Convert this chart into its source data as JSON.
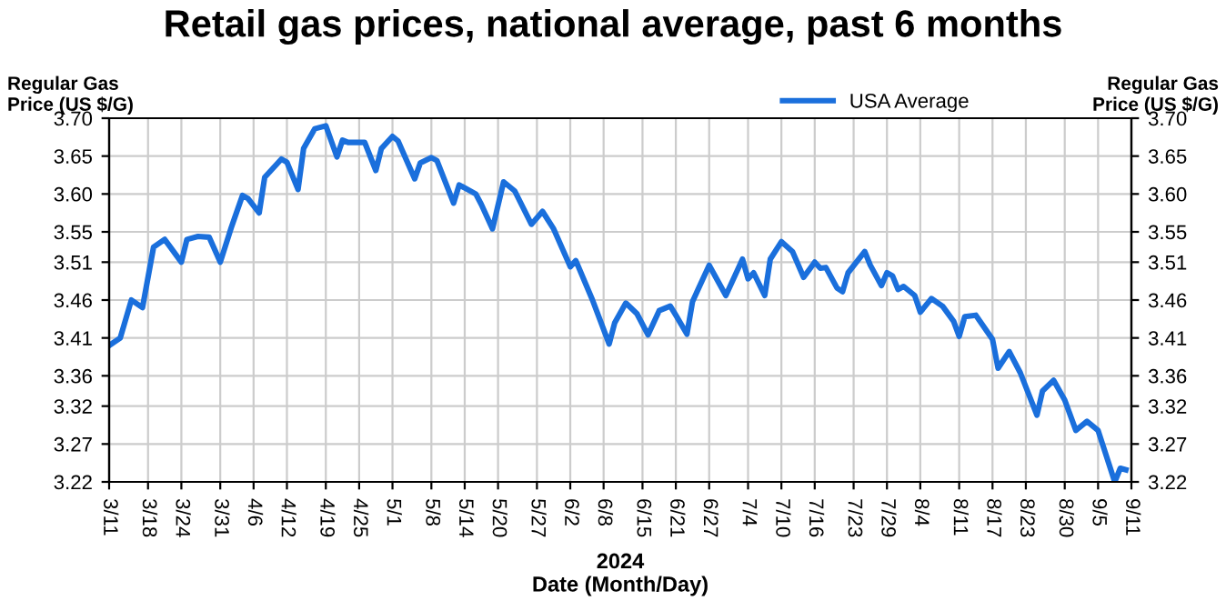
{
  "chart_data": {
    "type": "line",
    "title": "Retail gas prices, national average, past 6 months",
    "xlabel": "2024\nDate (Month/Day)",
    "ylabel": "Regular Gas\nPrice (US $/G)",
    "y2label": "Regular Gas\nPrice (US $/G)",
    "x": [
      "2024-03-11",
      "2024-03-13",
      "2024-03-15",
      "2024-03-17",
      "2024-03-19",
      "2024-03-21",
      "2024-03-22",
      "2024-03-24",
      "2024-03-25",
      "2024-03-27",
      "2024-03-29",
      "2024-03-31",
      "2024-04-02",
      "2024-04-04",
      "2024-04-05",
      "2024-04-07",
      "2024-04-08",
      "2024-04-11",
      "2024-04-12",
      "2024-04-14",
      "2024-04-15",
      "2024-04-17",
      "2024-04-19",
      "2024-04-21",
      "2024-04-22",
      "2024-04-23",
      "2024-04-26",
      "2024-04-28",
      "2024-04-29",
      "2024-05-01",
      "2024-05-02",
      "2024-05-05",
      "2024-05-06",
      "2024-05-08",
      "2024-05-09",
      "2024-05-12",
      "2024-05-13",
      "2024-05-16",
      "2024-05-17",
      "2024-05-19",
      "2024-05-21",
      "2024-05-23",
      "2024-05-26",
      "2024-05-28",
      "2024-05-30",
      "2024-06-02",
      "2024-06-03",
      "2024-06-06",
      "2024-06-09",
      "2024-06-10",
      "2024-06-12",
      "2024-06-14",
      "2024-06-16",
      "2024-06-18",
      "2024-06-20",
      "2024-06-21",
      "2024-06-23",
      "2024-06-24",
      "2024-06-27",
      "2024-06-30",
      "2024-07-03",
      "2024-07-04",
      "2024-07-05",
      "2024-07-07",
      "2024-07-08",
      "2024-07-10",
      "2024-07-12",
      "2024-07-14",
      "2024-07-16",
      "2024-07-17",
      "2024-07-18",
      "2024-07-20",
      "2024-07-21",
      "2024-07-22",
      "2024-07-25",
      "2024-07-26",
      "2024-07-28",
      "2024-07-29",
      "2024-07-30",
      "2024-07-31",
      "2024-08-01",
      "2024-08-03",
      "2024-08-04",
      "2024-08-06",
      "2024-08-08",
      "2024-08-10",
      "2024-08-11",
      "2024-08-12",
      "2024-08-14",
      "2024-08-17",
      "2024-08-18",
      "2024-08-20",
      "2024-08-22",
      "2024-08-25",
      "2024-08-26",
      "2024-08-28",
      "2024-08-30",
      "2024-09-01",
      "2024-09-03",
      "2024-09-05",
      "2024-09-08",
      "2024-09-09",
      "2024-09-10"
    ],
    "series": [
      {
        "name": "USA Average",
        "color": "#1a6fdc",
        "values": [
          3.4,
          3.41,
          3.46,
          3.45,
          3.53,
          3.54,
          3.53,
          3.51,
          3.54,
          3.544,
          3.543,
          3.51,
          3.556,
          3.598,
          3.594,
          3.575,
          3.622,
          3.646,
          3.642,
          3.606,
          3.66,
          3.686,
          3.69,
          3.649,
          3.671,
          3.668,
          3.668,
          3.631,
          3.66,
          3.676,
          3.67,
          3.62,
          3.641,
          3.648,
          3.644,
          3.588,
          3.612,
          3.6,
          3.586,
          3.554,
          3.616,
          3.604,
          3.56,
          3.577,
          3.554,
          3.504,
          3.512,
          3.46,
          3.402,
          3.43,
          3.456,
          3.442,
          3.414,
          3.446,
          3.452,
          3.44,
          3.415,
          3.458,
          3.506,
          3.466,
          3.514,
          3.488,
          3.496,
          3.466,
          3.514,
          3.537,
          3.524,
          3.49,
          3.51,
          3.502,
          3.503,
          3.476,
          3.471,
          3.496,
          3.524,
          3.506,
          3.479,
          3.496,
          3.492,
          3.474,
          3.478,
          3.466,
          3.444,
          3.462,
          3.452,
          3.432,
          3.412,
          3.438,
          3.44,
          3.408,
          3.37,
          3.392,
          3.364,
          3.308,
          3.34,
          3.354,
          3.328,
          3.288,
          3.3,
          3.288,
          3.22,
          3.238,
          3.236
        ]
      }
    ],
    "xlim": [
      "2024-03-11",
      "2024-09-11"
    ],
    "xticks": [
      {
        "value": "2024-03-11",
        "label": "3/11"
      },
      {
        "value": "2024-03-18",
        "label": "3/18"
      },
      {
        "value": "2024-03-24",
        "label": "3/24"
      },
      {
        "value": "2024-03-31",
        "label": "3/31"
      },
      {
        "value": "2024-04-06",
        "label": "4/6"
      },
      {
        "value": "2024-04-12",
        "label": "4/12"
      },
      {
        "value": "2024-04-19",
        "label": "4/19"
      },
      {
        "value": "2024-04-25",
        "label": "4/25"
      },
      {
        "value": "2024-05-01",
        "label": "5/1"
      },
      {
        "value": "2024-05-08",
        "label": "5/8"
      },
      {
        "value": "2024-05-14",
        "label": "5/14"
      },
      {
        "value": "2024-05-20",
        "label": "5/20"
      },
      {
        "value": "2024-05-27",
        "label": "5/27"
      },
      {
        "value": "2024-06-02",
        "label": "6/2"
      },
      {
        "value": "2024-06-08",
        "label": "6/8"
      },
      {
        "value": "2024-06-15",
        "label": "6/15"
      },
      {
        "value": "2024-06-21",
        "label": "6/21"
      },
      {
        "value": "2024-06-27",
        "label": "6/27"
      },
      {
        "value": "2024-07-04",
        "label": "7/4"
      },
      {
        "value": "2024-07-10",
        "label": "7/10"
      },
      {
        "value": "2024-07-16",
        "label": "7/16"
      },
      {
        "value": "2024-07-23",
        "label": "7/23"
      },
      {
        "value": "2024-07-29",
        "label": "7/29"
      },
      {
        "value": "2024-08-04",
        "label": "8/4"
      },
      {
        "value": "2024-08-11",
        "label": "8/11"
      },
      {
        "value": "2024-08-17",
        "label": "8/17"
      },
      {
        "value": "2024-08-23",
        "label": "8/23"
      },
      {
        "value": "2024-08-30",
        "label": "8/30"
      },
      {
        "value": "2024-09-05",
        "label": "9/5"
      },
      {
        "value": "2024-09-11",
        "label": "9/11"
      }
    ],
    "ylim": [
      3.22,
      3.7
    ],
    "yticks": [
      3.22,
      3.27,
      3.32,
      3.36,
      3.41,
      3.46,
      3.51,
      3.55,
      {
        "value": 3.6,
        "label": "3.60"
      },
      3.65,
      {
        "value": 3.7,
        "label": "3.70"
      }
    ],
    "y2lim": [
      3.22,
      3.7
    ],
    "y2ticks": [
      3.22,
      3.27,
      3.32,
      3.36,
      3.41,
      3.46,
      3.51,
      3.55,
      {
        "value": 3.6,
        "label": "3.60"
      },
      3.65,
      {
        "value": 3.7,
        "label": "3.70"
      }
    ],
    "grid": true,
    "legend": "top",
    "marker": "none",
    "line_style": "solid"
  }
}
